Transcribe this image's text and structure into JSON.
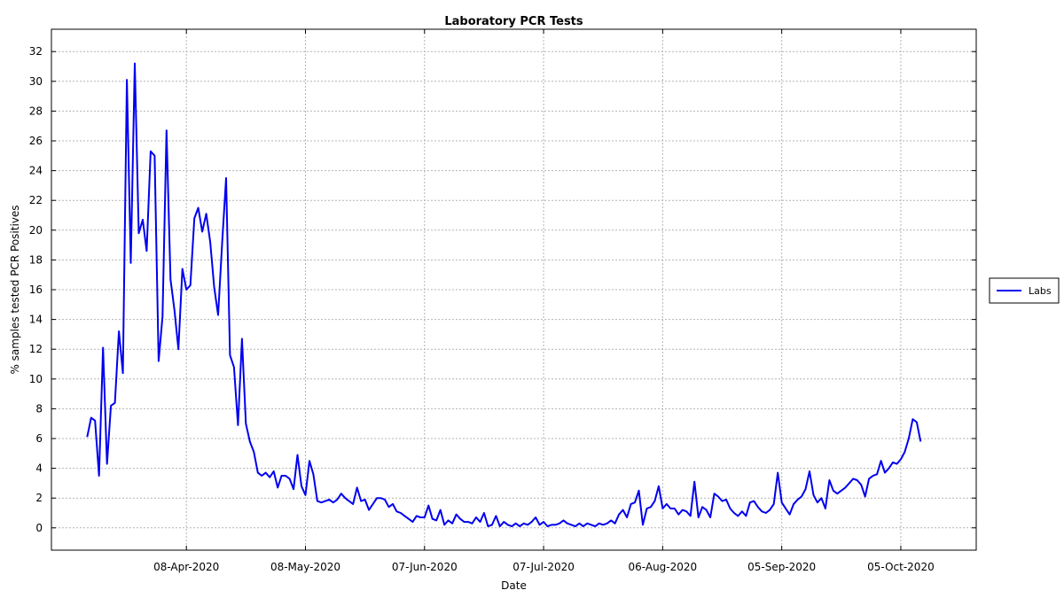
{
  "chart_data": {
    "type": "line",
    "title": "Laboratory PCR Tests",
    "xlabel": "Date",
    "ylabel": "% samples tested PCR Positives",
    "ylim": [
      -1.5,
      33.5
    ],
    "xlim": [
      "2020-03-05",
      "2020-10-24"
    ],
    "yticks": [
      0,
      2,
      4,
      6,
      8,
      10,
      12,
      14,
      16,
      18,
      20,
      22,
      24,
      26,
      28,
      30,
      32
    ],
    "xticks": [
      {
        "date": "2020-04-08",
        "label": "08-Apr-2020"
      },
      {
        "date": "2020-05-08",
        "label": "08-May-2020"
      },
      {
        "date": "2020-06-07",
        "label": "07-Jun-2020"
      },
      {
        "date": "2020-07-07",
        "label": "07-Jul-2020"
      },
      {
        "date": "2020-08-06",
        "label": "06-Aug-2020"
      },
      {
        "date": "2020-09-05",
        "label": "05-Sep-2020"
      },
      {
        "date": "2020-10-05",
        "label": "05-Oct-2020"
      }
    ],
    "grid": true,
    "legend_position": "right",
    "series": [
      {
        "name": "Labs",
        "color": "#0000ee",
        "x_start": "2020-03-14",
        "x_step_days": 1,
        "values": [
          6.1,
          7.4,
          7.2,
          3.5,
          12.1,
          4.3,
          8.2,
          8.4,
          13.2,
          10.4,
          30.1,
          17.8,
          31.2,
          19.8,
          20.7,
          18.6,
          25.3,
          25.0,
          11.2,
          14.2,
          26.7,
          16.7,
          14.6,
          12.0,
          17.4,
          16.0,
          16.3,
          20.8,
          21.5,
          19.9,
          21.1,
          19.2,
          16.2,
          14.3,
          19.1,
          23.5,
          11.6,
          10.8,
          6.9,
          12.7,
          7.0,
          5.8,
          5.1,
          3.7,
          3.5,
          3.7,
          3.4,
          3.8,
          2.7,
          3.5,
          3.5,
          3.3,
          2.6,
          4.9,
          2.8,
          2.2,
          4.5,
          3.6,
          1.8,
          1.7,
          1.8,
          1.9,
          1.7,
          1.9,
          2.3,
          2.0,
          1.8,
          1.6,
          2.7,
          1.8,
          1.9,
          1.2,
          1.6,
          2.0,
          2.0,
          1.9,
          1.4,
          1.6,
          1.1,
          1.0,
          0.8,
          0.6,
          0.4,
          0.8,
          0.7,
          0.7,
          1.5,
          0.6,
          0.5,
          1.2,
          0.2,
          0.5,
          0.3,
          0.9,
          0.6,
          0.4,
          0.4,
          0.3,
          0.7,
          0.4,
          1.0,
          0.1,
          0.2,
          0.8,
          0.1,
          0.4,
          0.2,
          0.1,
          0.3,
          0.1,
          0.3,
          0.2,
          0.4,
          0.7,
          0.2,
          0.4,
          0.1,
          0.2,
          0.2,
          0.3,
          0.5,
          0.3,
          0.2,
          0.1,
          0.3,
          0.1,
          0.3,
          0.2,
          0.1,
          0.3,
          0.2,
          0.3,
          0.5,
          0.3,
          0.9,
          1.2,
          0.7,
          1.6,
          1.7,
          2.5,
          0.2,
          1.3,
          1.4,
          1.8,
          2.8,
          1.3,
          1.6,
          1.3,
          1.3,
          0.9,
          1.2,
          1.1,
          0.8,
          3.1,
          0.7,
          1.4,
          1.2,
          0.7,
          2.3,
          2.1,
          1.8,
          1.9,
          1.3,
          1.0,
          0.8,
          1.1,
          0.8,
          1.7,
          1.8,
          1.4,
          1.1,
          1.0,
          1.2,
          1.6,
          3.7,
          1.7,
          1.3,
          0.9,
          1.6,
          1.9,
          2.1,
          2.6,
          3.8,
          2.2,
          1.7,
          2.0,
          1.3,
          3.2,
          2.5,
          2.3,
          2.5,
          2.7,
          3.0,
          3.3,
          3.2,
          2.9,
          2.1,
          3.3,
          3.5,
          3.6,
          4.5,
          3.7,
          4.0,
          4.4,
          4.3,
          4.6,
          5.1,
          6.0,
          7.3,
          7.1,
          5.8
        ]
      }
    ]
  }
}
